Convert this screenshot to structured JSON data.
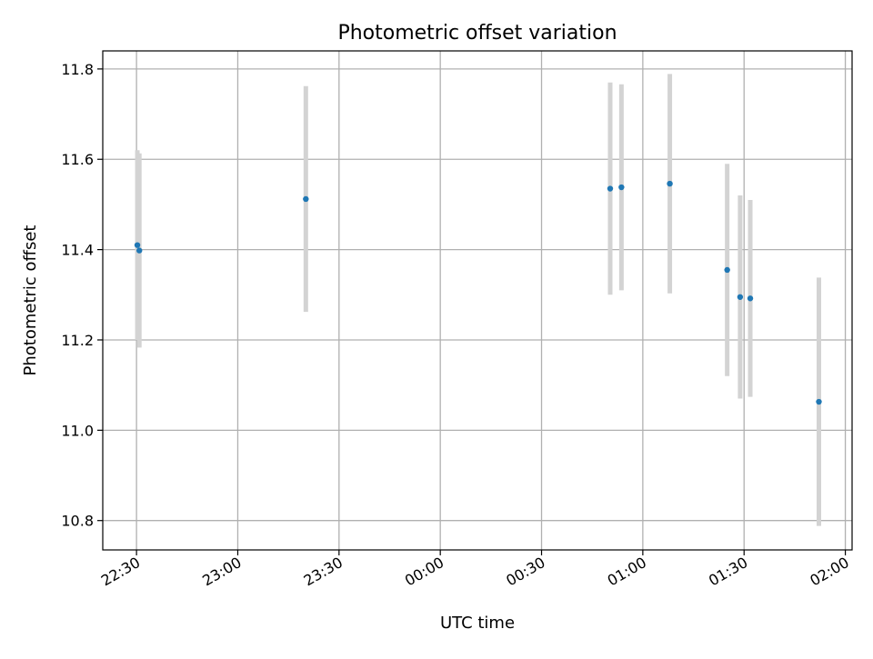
{
  "chart_data": {
    "type": "scatter",
    "title": "Photometric offset variation",
    "xlabel": "UTC time",
    "ylabel": "Photometric offset",
    "x_axis_kind": "time",
    "x_tick_labels": [
      "22:30",
      "23:00",
      "23:30",
      "00:00",
      "00:30",
      "01:00",
      "01:30",
      "02:00"
    ],
    "x_tick_minutes": [
      0,
      30,
      60,
      90,
      120,
      150,
      180,
      210
    ],
    "xlim_minutes": [
      -10,
      212
    ],
    "y_tick_labels": [
      "10.8",
      "11.0",
      "11.2",
      "11.4",
      "11.6",
      "11.8"
    ],
    "y_ticks": [
      10.8,
      11.0,
      11.2,
      11.4,
      11.6,
      11.8
    ],
    "ylim": [
      10.735,
      11.84
    ],
    "grid": true,
    "colors": {
      "point": "#1f77b4",
      "errorbar": "#d3d3d3",
      "grid": "#b0b0b0",
      "axes": "#000000"
    },
    "points": [
      {
        "time": "22:30:15",
        "y": 11.41,
        "yerr": 0.21
      },
      {
        "time": "22:30:50",
        "y": 11.398,
        "yerr": 0.215
      },
      {
        "time": "23:20:10",
        "y": 11.512,
        "yerr": 0.25
      },
      {
        "time": "00:50:20",
        "y": 11.535,
        "yerr": 0.235
      },
      {
        "time": "00:53:40",
        "y": 11.538,
        "yerr": 0.228
      },
      {
        "time": "01:08:00",
        "y": 11.546,
        "yerr": 0.243
      },
      {
        "time": "01:25:00",
        "y": 11.355,
        "yerr": 0.235
      },
      {
        "time": "01:28:50",
        "y": 11.295,
        "yerr": 0.225
      },
      {
        "time": "01:31:50",
        "y": 11.292,
        "yerr": 0.218
      },
      {
        "time": "01:52:10",
        "y": 11.063,
        "yerr": 0.275
      }
    ]
  }
}
